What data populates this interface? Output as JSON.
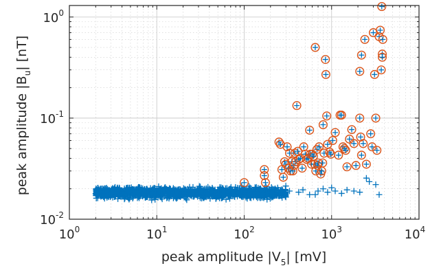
{
  "chart_data": {
    "type": "scatter",
    "title": "",
    "xlabel": "peak amplitude |V_5| [mV]",
    "xlabel_main": "peak amplitude |V",
    "xlabel_sub": "5",
    "xlabel_end": "| [mV]",
    "ylabel": "peak amplitude |B_u| [nT]",
    "ylabel_main": "peak amplitude |B",
    "ylabel_sub": "u",
    "ylabel_end": "| [nT]",
    "xscale": "log",
    "yscale": "log",
    "xlim": [
      1,
      10000
    ],
    "ylim": [
      0.01,
      1.3
    ],
    "grid": true,
    "minor_grid": true,
    "x_ticks": [
      {
        "value": 1,
        "base": "10",
        "exp": "0"
      },
      {
        "value": 10,
        "base": "10",
        "exp": "1"
      },
      {
        "value": 100,
        "base": "10",
        "exp": "2"
      },
      {
        "value": 1000,
        "base": "10",
        "exp": "3"
      },
      {
        "value": 10000,
        "base": "10",
        "exp": "4"
      }
    ],
    "y_ticks": [
      {
        "value": 0.01,
        "base": "10",
        "exp": "-2"
      },
      {
        "value": 0.1,
        "base": "10",
        "exp": "-1"
      },
      {
        "value": 1,
        "base": "10",
        "exp": "0"
      }
    ],
    "colors": {
      "plus": "#0072BD",
      "circle": "#D95319",
      "grid": "#cccccc",
      "axis": "#262626"
    },
    "series": [
      {
        "marker": "plus",
        "cloud": {
          "x_range": [
            2,
            300
          ],
          "y_range": [
            0.0155,
            0.0215
          ],
          "count": 1400
        },
        "values": [
          [
            300,
            0.0185
          ],
          [
            330,
            0.019
          ],
          [
            420,
            0.0185
          ],
          [
            470,
            0.0195
          ],
          [
            560,
            0.0175
          ],
          [
            700,
            0.019
          ],
          [
            800,
            0.02
          ],
          [
            900,
            0.0185
          ],
          [
            1100,
            0.019
          ],
          [
            1300,
            0.018
          ],
          [
            1500,
            0.0195
          ],
          [
            1800,
            0.019
          ],
          [
            2100,
            0.0185
          ],
          [
            2500,
            0.0255
          ],
          [
            2700,
            0.0235
          ],
          [
            3200,
            0.022
          ],
          [
            3500,
            0.0175
          ],
          [
            650,
            0.0175
          ],
          [
            1000,
            0.0205
          ]
        ]
      },
      {
        "marker": "circle-plus",
        "values": [
          [
            100,
            0.023
          ],
          [
            170,
            0.031
          ],
          [
            170,
            0.027
          ],
          [
            175,
            0.023
          ],
          [
            250,
            0.058
          ],
          [
            260,
            0.055
          ],
          [
            270,
            0.031
          ],
          [
            280,
            0.026
          ],
          [
            290,
            0.037
          ],
          [
            300,
            0.035
          ],
          [
            310,
            0.052
          ],
          [
            320,
            0.032
          ],
          [
            330,
            0.045
          ],
          [
            340,
            0.03
          ],
          [
            350,
            0.037
          ],
          [
            360,
            0.03
          ],
          [
            370,
            0.034
          ],
          [
            380,
            0.045
          ],
          [
            390,
            0.037
          ],
          [
            400,
            0.133
          ],
          [
            410,
            0.047
          ],
          [
            420,
            0.039
          ],
          [
            440,
            0.04
          ],
          [
            460,
            0.032
          ],
          [
            480,
            0.052
          ],
          [
            500,
            0.044
          ],
          [
            520,
            0.039
          ],
          [
            540,
            0.04
          ],
          [
            560,
            0.076
          ],
          [
            570,
            0.044
          ],
          [
            590,
            0.035
          ],
          [
            600,
            0.044
          ],
          [
            620,
            0.042
          ],
          [
            640,
            0.035
          ],
          [
            650,
            0.5
          ],
          [
            660,
            0.03
          ],
          [
            680,
            0.049
          ],
          [
            690,
            0.034
          ],
          [
            700,
            0.036
          ],
          [
            720,
            0.052
          ],
          [
            750,
            0.028
          ],
          [
            770,
            0.03
          ],
          [
            790,
            0.036
          ],
          [
            800,
            0.086
          ],
          [
            820,
            0.045
          ],
          [
            850,
            0.38
          ],
          [
            860,
            0.27
          ],
          [
            880,
            0.105
          ],
          [
            900,
            0.055
          ],
          [
            950,
            0.046
          ],
          [
            980,
            0.044
          ],
          [
            1030,
            0.06
          ],
          [
            1100,
            0.072
          ],
          [
            1200,
            0.043
          ],
          [
            1250,
            0.107
          ],
          [
            1300,
            0.107
          ],
          [
            1350,
            0.052
          ],
          [
            1400,
            0.05
          ],
          [
            1450,
            0.048
          ],
          [
            1500,
            0.033
          ],
          [
            1600,
            0.062
          ],
          [
            1700,
            0.077
          ],
          [
            1800,
            0.056
          ],
          [
            1900,
            0.034
          ],
          [
            2100,
            0.1
          ],
          [
            2150,
            0.065
          ],
          [
            2200,
            0.043
          ],
          [
            2300,
            0.056
          ],
          [
            2500,
            0.035
          ],
          [
            2800,
            0.07
          ],
          [
            2900,
            0.052
          ],
          [
            3100,
            0.27
          ],
          [
            3200,
            0.1
          ],
          [
            3300,
            0.048
          ],
          [
            3500,
            0.64
          ],
          [
            3600,
            0.74
          ],
          [
            3700,
            0.3
          ],
          [
            3750,
            1.27
          ],
          [
            3800,
            0.43
          ],
          [
            3800,
            0.4
          ],
          [
            3850,
            0.6
          ],
          [
            2100,
            0.29
          ],
          [
            2200,
            0.42
          ],
          [
            2400,
            0.6
          ],
          [
            3000,
            0.7
          ]
        ]
      }
    ]
  }
}
